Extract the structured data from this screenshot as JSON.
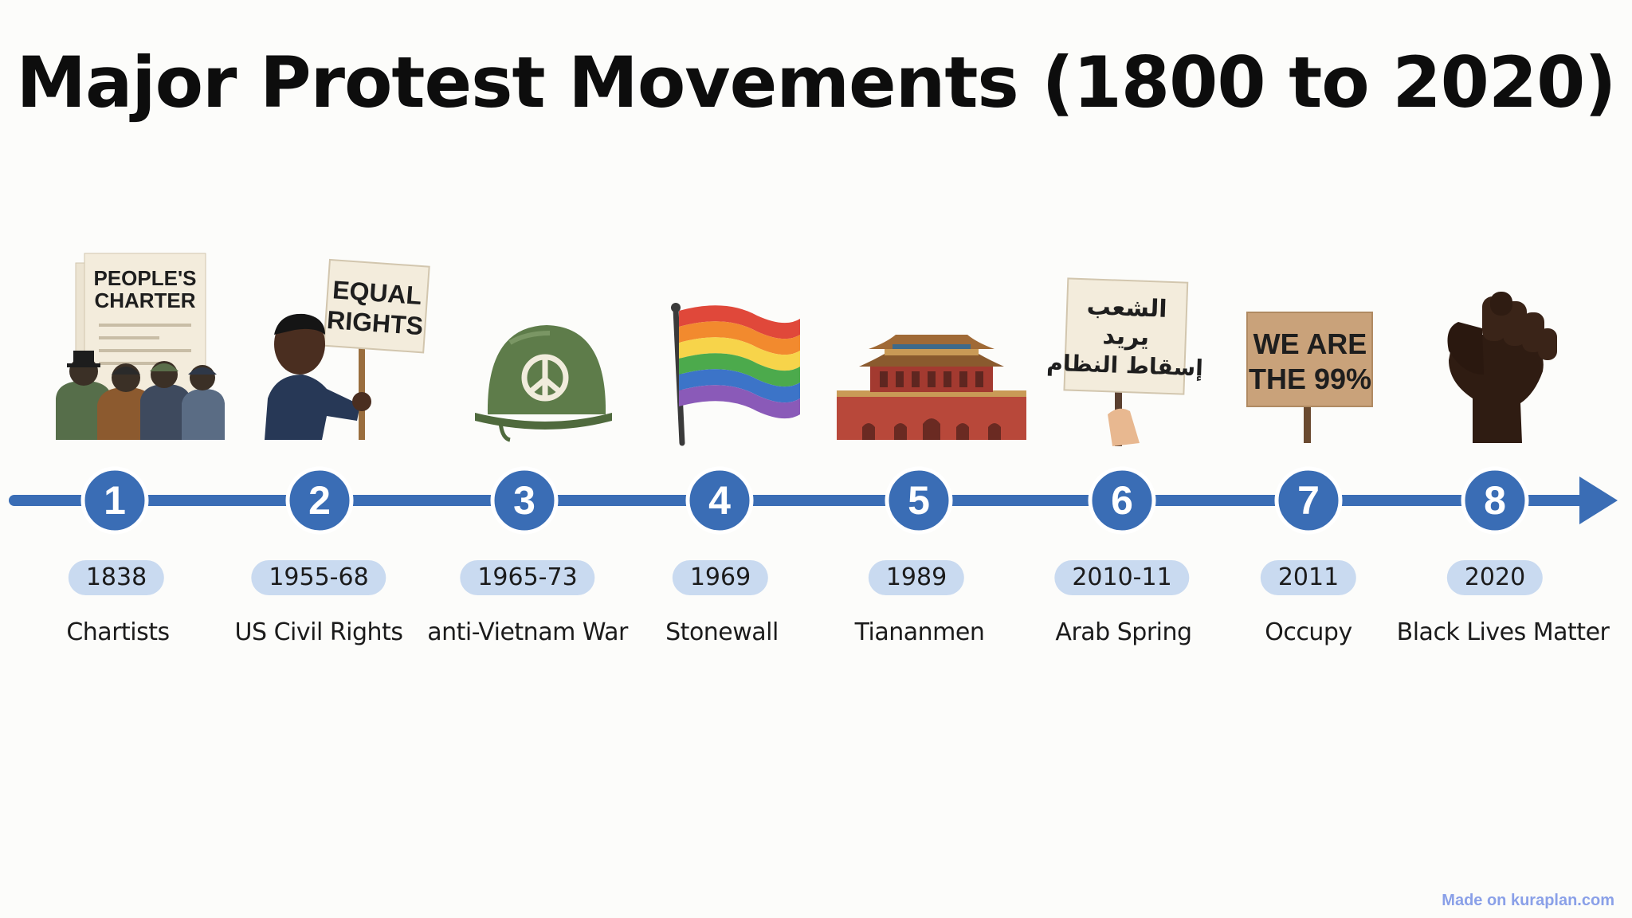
{
  "title": "Major Protest Movements (1800 to 2020)",
  "events": [
    {
      "number": "1",
      "years": "1838",
      "name": "Chartists",
      "icon": "peoples-charter-icon",
      "sign": [
        "PEOPLE'S",
        "CHARTER"
      ]
    },
    {
      "number": "2",
      "years": "1955-68",
      "name": "US Civil Rights",
      "icon": "equal-rights-sign-icon",
      "sign": [
        "EQUAL",
        "RIGHTS"
      ]
    },
    {
      "number": "3",
      "years": "1965-73",
      "name": "anti-Vietnam War",
      "icon": "peace-helmet-icon"
    },
    {
      "number": "4",
      "years": "1969",
      "name": "Stonewall",
      "icon": "rainbow-flag-icon"
    },
    {
      "number": "5",
      "years": "1989",
      "name": "Tiananmen",
      "icon": "tiananmen-gate-icon"
    },
    {
      "number": "6",
      "years": "2010-11",
      "name": "Arab Spring",
      "icon": "arabic-sign-icon",
      "sign": [
        "الشعب",
        "يريد",
        "إسقاط النظام"
      ]
    },
    {
      "number": "7",
      "years": "2011",
      "name": "Occupy",
      "icon": "we-are-the-99-sign-icon",
      "sign": [
        "WE ARE",
        "THE 99%"
      ]
    },
    {
      "number": "8",
      "years": "2020",
      "name": "Black Lives Matter",
      "icon": "raised-fist-icon"
    }
  ],
  "credit": "Made on kuraplan.com",
  "colors": {
    "timeline": "#3a6db5",
    "pill": "#c9daf0",
    "title": "#0d0d0d"
  }
}
